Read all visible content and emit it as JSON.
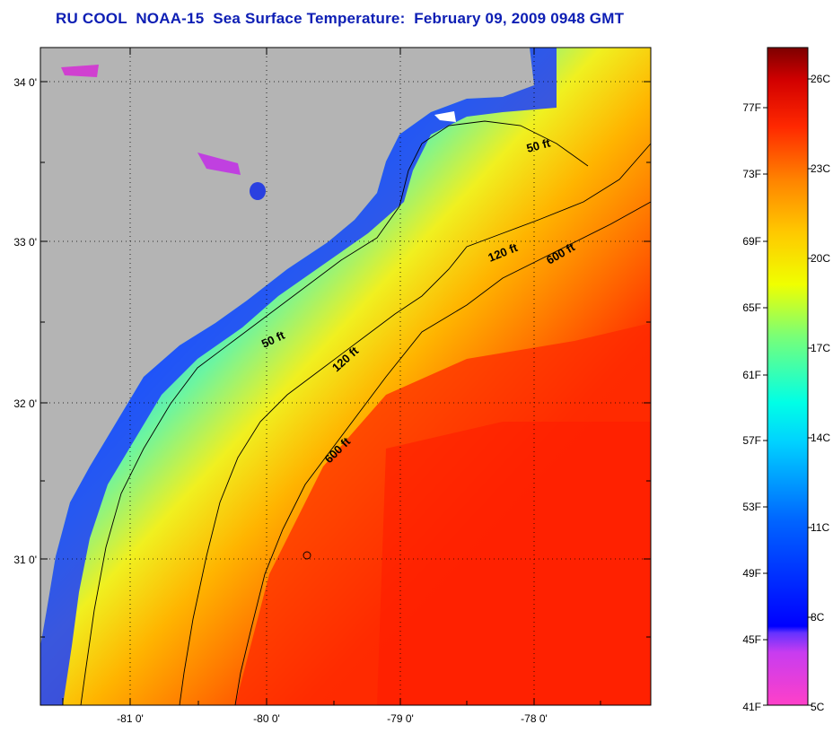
{
  "title": "RU COOL  NOAA-15  Sea Surface Temperature:  February 09, 2009 0948 GMT",
  "map": {
    "lat_labels": [
      "34 0'",
      "33 0'",
      "32 0'",
      "31 0'"
    ],
    "lon_labels": [
      "-81 0'",
      "-80 0'",
      "-79 0'",
      "-78 0'"
    ],
    "contour_labels": [
      "50 ft",
      "120 ft",
      "600 ft",
      "50 ft",
      "120 ft",
      "600 ft"
    ],
    "colors": {
      "land": "#b4b4b4",
      "cold": "#0032ff",
      "warm": "#ff1e00"
    }
  },
  "colorbar": {
    "fahrenheit_labels": [
      "77F",
      "73F",
      "69F",
      "65F",
      "61F",
      "57F",
      "53F",
      "49F",
      "45F",
      "41F"
    ],
    "celsius_labels": [
      "26C",
      "23C",
      "20C",
      "17C",
      "14C",
      "11C",
      "8C",
      "5C"
    ],
    "colors": [
      "#ff40c8",
      "#9632ff",
      "#0000ff",
      "#0096ff",
      "#00ffff",
      "#64ff96",
      "#ffff00",
      "#ffb400",
      "#ff6400",
      "#ff0000",
      "#c80000",
      "#7d0000"
    ]
  }
}
